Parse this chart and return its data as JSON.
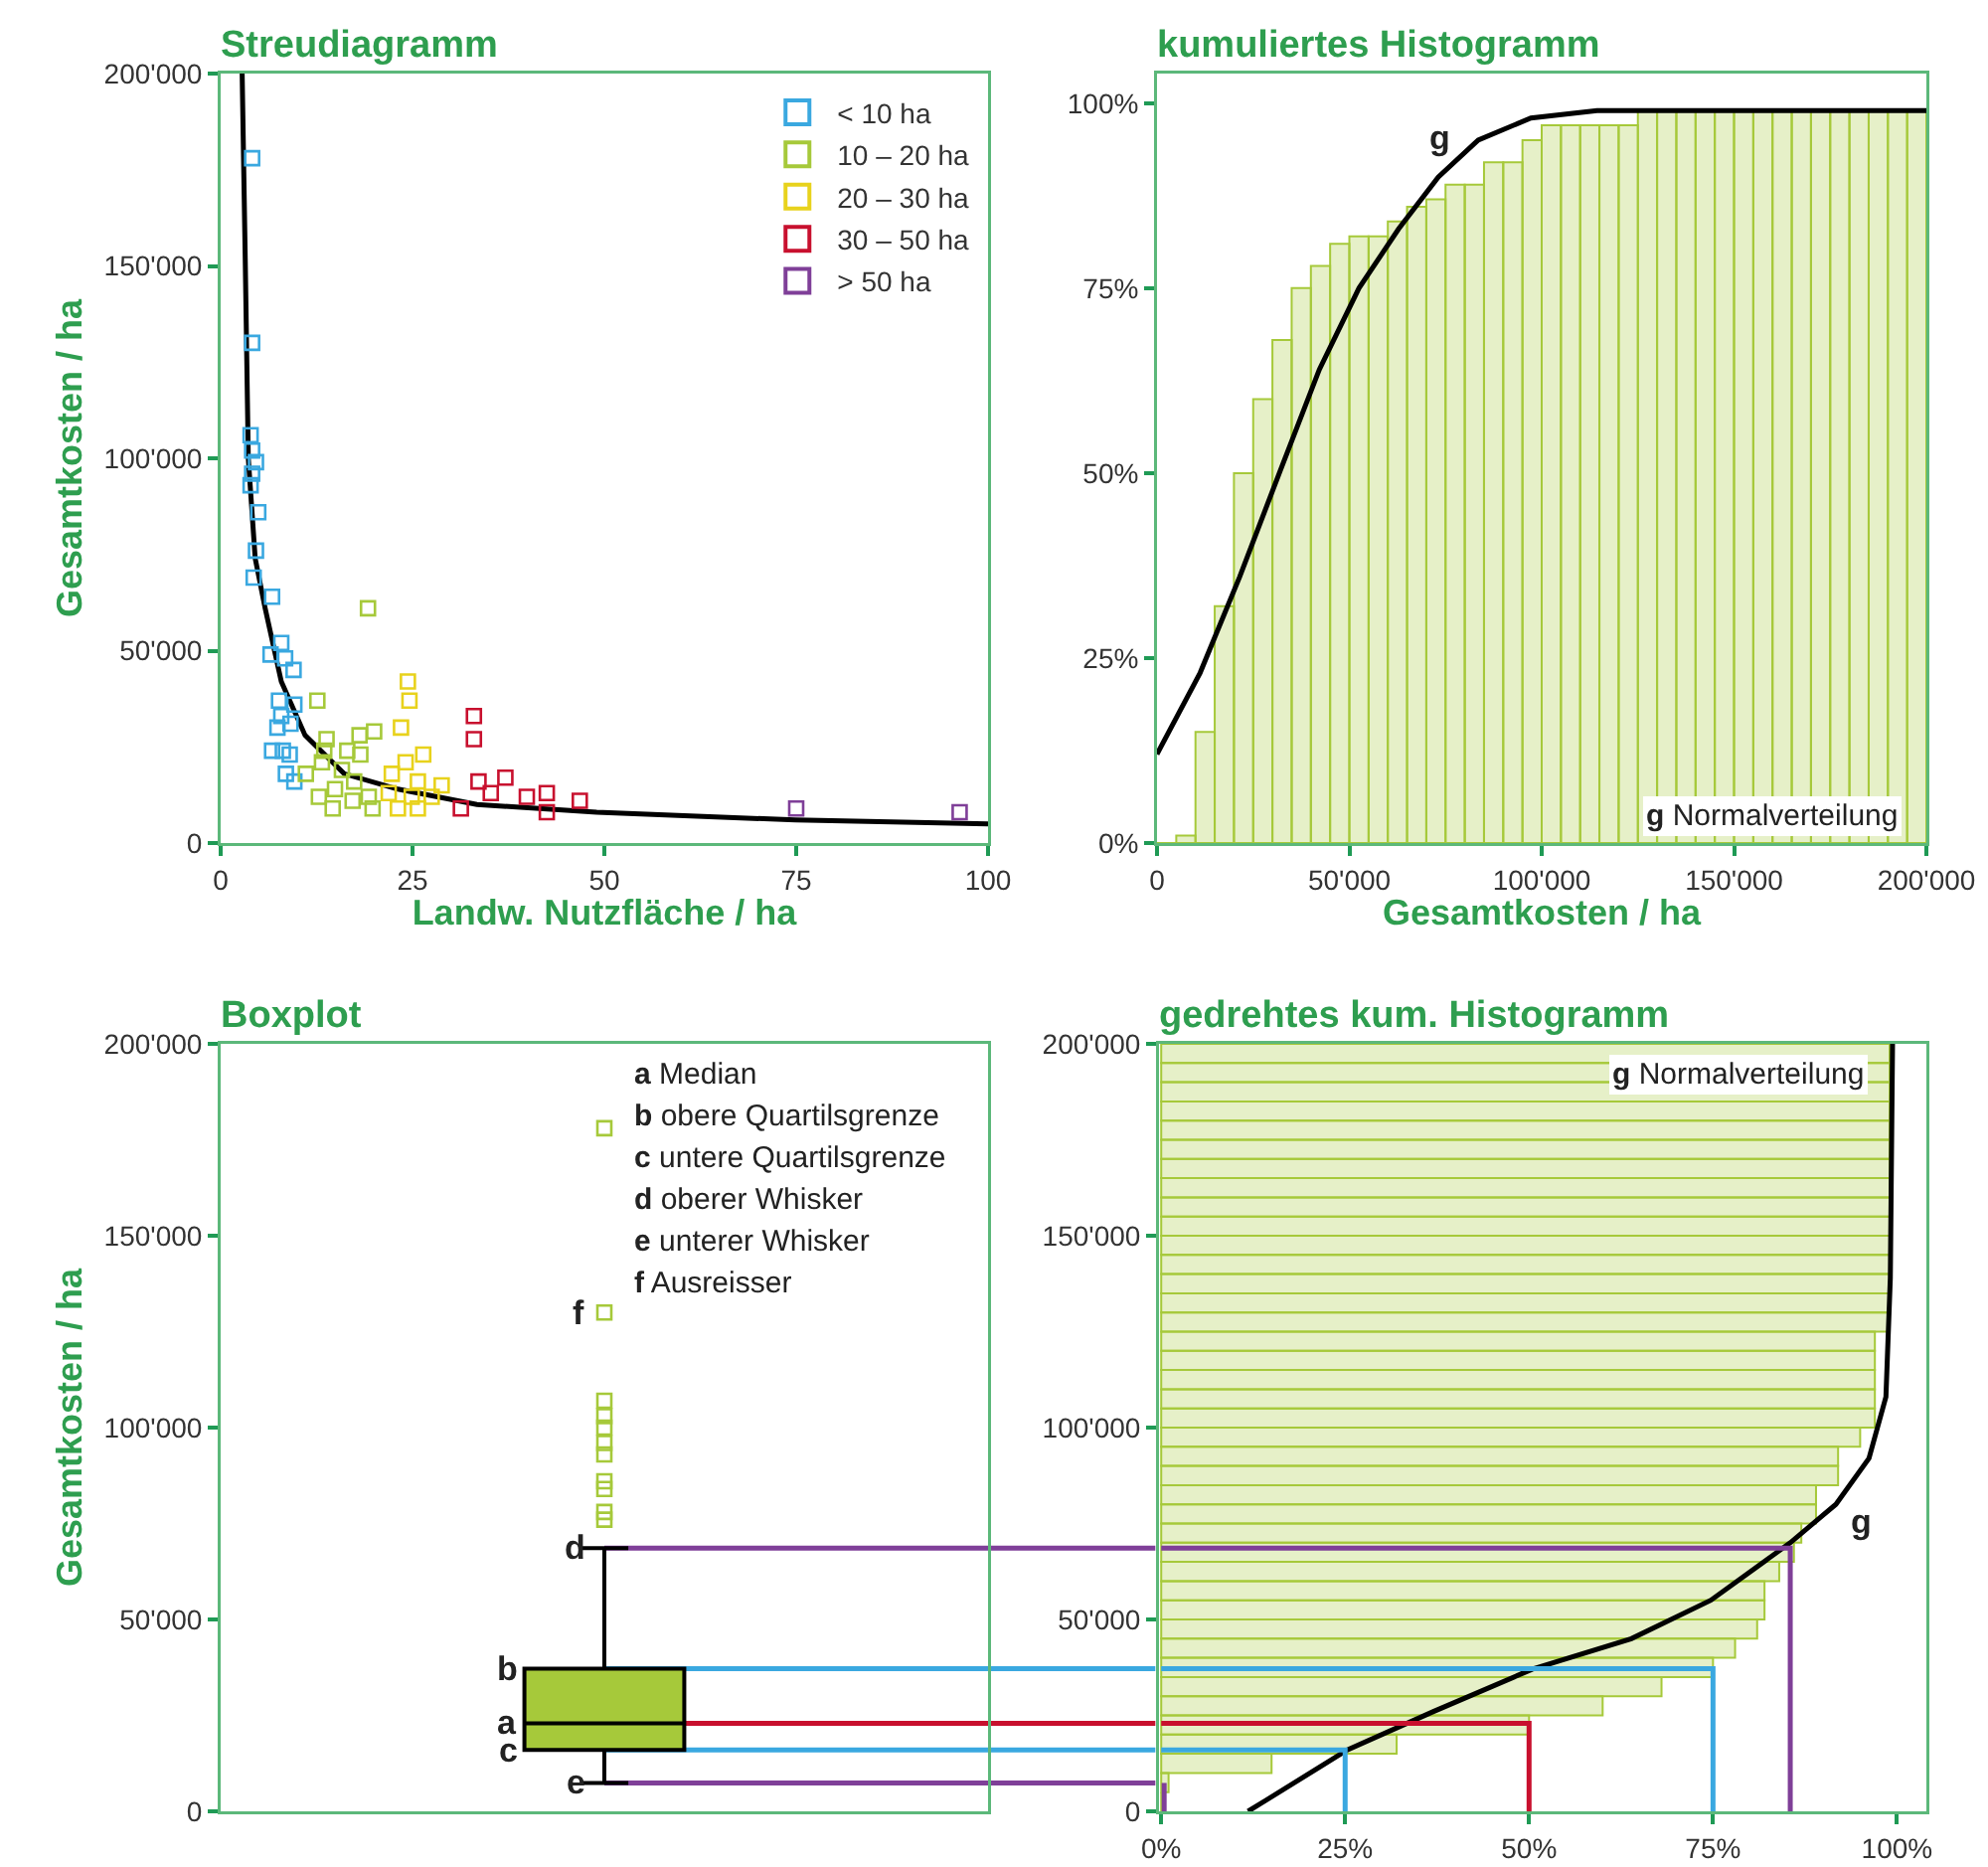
{
  "chart_data": [
    {
      "type": "scatter",
      "title": "Streudiagramm",
      "xlabel": "Landw. Nutzfläche / ha",
      "ylabel": "Gesamtkosten / ha",
      "xlim": [
        0,
        100
      ],
      "xticks": [
        {
          "value": 0,
          "label": "0"
        },
        25,
        50,
        75,
        100
      ],
      "ylim": [
        0,
        200000
      ],
      "yticks": [
        {
          "value": 0,
          "label": "0"
        },
        {
          "value": 50000,
          "label": "50'000"
        },
        {
          "value": 100000,
          "label": "100'000"
        },
        {
          "value": 150000,
          "label": "150'000"
        },
        {
          "value": 200000,
          "label": "200'000"
        }
      ],
      "legend": "top right",
      "marker": "square",
      "series": [
        {
          "name": "< 10 ha",
          "color": "#3aa8e0",
          "x": [
            4.1,
            4.1,
            3.9,
            4.1,
            4.6,
            4.1,
            3.9,
            4.9,
            4.6,
            4.3,
            6.7,
            7.9,
            6.5,
            8.4,
            9.5,
            7.6,
            9.6,
            7.9,
            7.4,
            9.1,
            8.1,
            9,
            8.5,
            9.6,
            6.7
          ],
          "values": [
            178000,
            130000,
            106000,
            102000,
            99000,
            96000,
            93000,
            86000,
            76000,
            69000,
            64000,
            52000,
            49000,
            48000,
            45000,
            37000,
            36000,
            33000,
            30000,
            31000,
            24000,
            23000,
            18000,
            16000,
            24000
          ]
        },
        {
          "name": "10 – 20 ha",
          "color": "#a6c93a",
          "x": [
            19.2,
            12.6,
            20,
            13.8,
            18.1,
            13.2,
            15.8,
            11.1,
            17.4,
            14.9,
            12.8,
            19.3,
            14.6,
            17.2,
            19.8,
            13.5,
            16.5,
            18.2
          ],
          "values": [
            61000,
            37000,
            29000,
            27000,
            28000,
            21000,
            19000,
            18000,
            16000,
            14000,
            12000,
            12000,
            9000,
            11000,
            9000,
            24000,
            24000,
            23000
          ]
        },
        {
          "name": "20 – 30 ha",
          "color": "#e8d21c",
          "x": [
            24.4,
            24.6,
            23.5,
            26.4,
            24.1,
            22.3,
            25.7,
            28.8,
            21.9,
            24.9,
            27.5,
            25.7,
            23.1
          ],
          "values": [
            42000,
            37000,
            30000,
            23000,
            21000,
            18000,
            16000,
            15000,
            13000,
            12000,
            12000,
            9000,
            9000
          ]
        },
        {
          "name": "30 – 50 ha",
          "color": "#c8102e",
          "x": [
            33,
            33,
            37.1,
            33.6,
            39.9,
            42.5,
            42.5,
            46.8,
            31.3,
            35.2
          ],
          "values": [
            33000,
            27000,
            17000,
            16000,
            12000,
            13000,
            8000,
            11000,
            9000,
            13000
          ]
        },
        {
          "name": "> 50 ha",
          "color": "#7f3f98",
          "x": [
            75,
            96.3
          ],
          "values": [
            9000,
            8000
          ]
        },
        {
          "type": "line",
          "color": "#000000",
          "marker": "none",
          "x": [
            2.8,
            3.2,
            3.6,
            4.5,
            5.8,
            7.9,
            11,
            16.1,
            23.1,
            33.4,
            49,
            74.9,
            100
          ],
          "values": [
            200000,
            152000,
            100000,
            74000,
            61000,
            42000,
            28000,
            18000,
            14000,
            10000,
            8000,
            6000,
            5000
          ]
        }
      ]
    },
    {
      "type": "histogram",
      "title": "kumuliertes Histogramm",
      "xlabel": "Gesamtkosten / ha",
      "xlim": [
        0,
        200000
      ],
      "xticks": [
        {
          "value": 0,
          "label": "0"
        },
        {
          "value": 50000,
          "label": "50'000"
        },
        {
          "value": 100000,
          "label": "100'000"
        },
        {
          "value": 150000,
          "label": "150'000"
        },
        {
          "value": 200000,
          "label": "200'000"
        }
      ],
      "ylim": [
        0,
        104
      ],
      "yticks": [
        {
          "value": 0,
          "label": "0%"
        },
        {
          "value": 25,
          "label": "25%"
        },
        {
          "value": 50,
          "label": "50%"
        },
        {
          "value": 75,
          "label": "75%"
        },
        {
          "value": 100,
          "label": "100%"
        }
      ],
      "bins": [
        0,
        5000,
        10000,
        15000,
        20000,
        25000,
        30000,
        35000,
        40000,
        45000,
        50000,
        55000,
        60000,
        65000,
        70000,
        75000,
        80000,
        85000,
        90000,
        95000,
        100000,
        105000,
        110000,
        115000,
        120000,
        125000,
        130000,
        135000,
        140000,
        145000,
        150000,
        155000,
        160000,
        165000,
        170000,
        175000,
        180000,
        185000,
        190000,
        195000,
        200000
      ],
      "annotations": [
        "g Normalverteilung",
        "g"
      ],
      "series": [
        {
          "type": "histogram",
          "color": "#a6c93a",
          "values": [
            0,
            1,
            15,
            32,
            50,
            60,
            68,
            75,
            78,
            81,
            82,
            82,
            84,
            86,
            87,
            89,
            89,
            92,
            92,
            95,
            97,
            97,
            97,
            97,
            97,
            99,
            99,
            99,
            99,
            99,
            99,
            99,
            99,
            99,
            99,
            99,
            99,
            99,
            99,
            99
          ]
        },
        {
          "type": "line",
          "color": "#000000",
          "x": [
            0,
            11200,
            21500,
            31800,
            42200,
            52500,
            62800,
            73100,
            83500,
            97200,
            114400,
            148900,
            200000
          ],
          "values": [
            12,
            23,
            36,
            50,
            64,
            75,
            83,
            90,
            95,
            98,
            99,
            99,
            99
          ]
        }
      ]
    },
    {
      "type": "box",
      "title": "Boxplot",
      "ylabel": "Gesamtkosten / ha",
      "categories": [
        null
      ],
      "ylim": [
        0,
        200000
      ],
      "yticks": [
        {
          "value": 0,
          "label": "0"
        },
        {
          "value": 50000,
          "label": "50'000"
        },
        {
          "value": 100000,
          "label": "100'000"
        },
        {
          "value": 150000,
          "label": "150'000"
        },
        {
          "value": 200000,
          "label": "200'000"
        }
      ],
      "color": "#a6c93a",
      "boxes": [
        {
          "low": 7400,
          "q1": 16000,
          "median": 22900,
          "q3": 37200,
          "high": 68600,
          "outliers": [
            178000,
            130000,
            107000,
            103000,
            100000,
            96000,
            93000,
            86000,
            84000,
            78000,
            76000
          ]
        }
      ],
      "ref_lines": [
        {
          "axis": "y",
          "value": 68600,
          "color": "#7f3f98"
        },
        {
          "axis": "y",
          "value": 37200,
          "color": "#3aa8e0"
        },
        {
          "axis": "y",
          "value": 22900,
          "color": "#c8102e"
        },
        {
          "axis": "y",
          "value": 16000,
          "color": "#3aa8e0"
        },
        {
          "axis": "y",
          "value": 7400,
          "color": "#7f3f98"
        }
      ],
      "annotations": [
        "a Median",
        "b obere Quartilsgrenze",
        "c untere Quartilsgrenze",
        "d oberer Whisker",
        "e unterer Whisker",
        "f Ausreisser",
        "a",
        "b",
        "c",
        "d",
        "e",
        "f"
      ]
    },
    {
      "type": "histogram",
      "title": "gedrehtes kum. Histogramm",
      "orientation": "horizontal",
      "xlim": [
        -0.3,
        104
      ],
      "xticks": [
        {
          "value": 0,
          "label": "0%"
        },
        {
          "value": 25,
          "label": "25%"
        },
        {
          "value": 50,
          "label": "50%"
        },
        {
          "value": 75,
          "label": "75%"
        },
        {
          "value": 100,
          "label": "100%"
        }
      ],
      "ylim": [
        0,
        200000
      ],
      "yticks": [
        {
          "value": 0,
          "label": "0"
        },
        {
          "value": 50000,
          "label": "50'000"
        },
        {
          "value": 100000,
          "label": "100'000"
        },
        {
          "value": 150000,
          "label": "150'000"
        },
        {
          "value": 200000,
          "label": "200'000"
        }
      ],
      "bins": [
        0,
        5000,
        10000,
        15000,
        20000,
        25000,
        30000,
        35000,
        40000,
        45000,
        50000,
        55000,
        60000,
        65000,
        70000,
        75000,
        80000,
        85000,
        90000,
        95000,
        100000,
        105000,
        110000,
        115000,
        120000,
        125000,
        130000,
        135000,
        140000,
        145000,
        150000,
        155000,
        160000,
        165000,
        170000,
        175000,
        180000,
        185000,
        190000,
        195000,
        200000
      ],
      "annotations": [
        "g Normalverteilung",
        "g"
      ],
      "series": [
        {
          "type": "histogram",
          "color": "#a6c93a",
          "values": [
            0,
            1,
            15,
            32,
            50,
            60,
            68,
            75,
            78,
            81,
            82,
            82,
            84,
            86,
            87,
            89,
            89,
            92,
            92,
            95,
            97,
            97,
            97,
            97,
            97,
            99,
            99,
            99,
            99,
            99,
            99,
            99,
            99,
            99,
            99,
            99,
            99,
            99,
            99,
            99
          ]
        },
        {
          "type": "line",
          "color": "#000000",
          "x": [
            0,
            16000,
            26000,
            37000,
            45000,
            55000,
            70000,
            80000,
            92000,
            108000,
            139000,
            200000
          ],
          "values": [
            11.8,
            25.3,
            37,
            50.4,
            63.9,
            74.7,
            85.5,
            91.7,
            96.2,
            98.5,
            99.1,
            99.4
          ]
        },
        {
          "type": "line",
          "color": "#7f3f98",
          "x": [
            68600,
            68600,
            0
          ],
          "values": [
            0,
            85.5,
            85.5
          ]
        },
        {
          "type": "line",
          "color": "#3aa8e0",
          "x": [
            37200,
            37200,
            0
          ],
          "values": [
            0,
            75,
            75
          ]
        },
        {
          "type": "line",
          "color": "#c8102e",
          "x": [
            22900,
            22900,
            0
          ],
          "values": [
            0,
            50,
            50
          ]
        },
        {
          "type": "line",
          "color": "#3aa8e0",
          "x": [
            16000,
            16000,
            0
          ],
          "values": [
            0,
            25,
            25
          ]
        },
        {
          "type": "line",
          "color": "#7f3f98",
          "x": [
            7400,
            0
          ],
          "values": [
            0.4,
            0.4
          ]
        }
      ]
    }
  ]
}
